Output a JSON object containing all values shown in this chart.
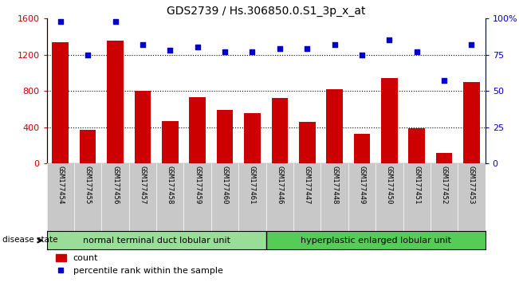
{
  "title": "GDS2739 / Hs.306850.0.S1_3p_x_at",
  "samples": [
    "GSM177454",
    "GSM177455",
    "GSM177456",
    "GSM177457",
    "GSM177458",
    "GSM177459",
    "GSM177460",
    "GSM177461",
    "GSM177446",
    "GSM177447",
    "GSM177448",
    "GSM177449",
    "GSM177450",
    "GSM177451",
    "GSM177452",
    "GSM177453"
  ],
  "counts": [
    1340,
    370,
    1350,
    800,
    470,
    730,
    590,
    560,
    720,
    460,
    820,
    330,
    940,
    390,
    120,
    900
  ],
  "percentiles": [
    98,
    75,
    98,
    82,
    78,
    80,
    77,
    77,
    79,
    79,
    82,
    75,
    85,
    77,
    57,
    82
  ],
  "group1_label": "normal terminal duct lobular unit",
  "group1_count": 8,
  "group2_label": "hyperplastic enlarged lobular unit",
  "group2_count": 8,
  "disease_state_label": "disease state",
  "bar_color": "#cc0000",
  "dot_color": "#0000cc",
  "group1_color": "#99dd99",
  "group2_color": "#55cc55",
  "ylim_left": [
    0,
    1600
  ],
  "ylim_right": [
    0,
    100
  ],
  "yticks_left": [
    0,
    400,
    800,
    1200,
    1600
  ],
  "yticks_right": [
    0,
    25,
    50,
    75,
    100
  ],
  "grid_lines": [
    400,
    800,
    1200
  ],
  "background_color": "#ffffff",
  "tick_area_color": "#c8c8c8",
  "title_fontsize": 10,
  "legend_count_label": "count",
  "legend_percentile_label": "percentile rank within the sample"
}
